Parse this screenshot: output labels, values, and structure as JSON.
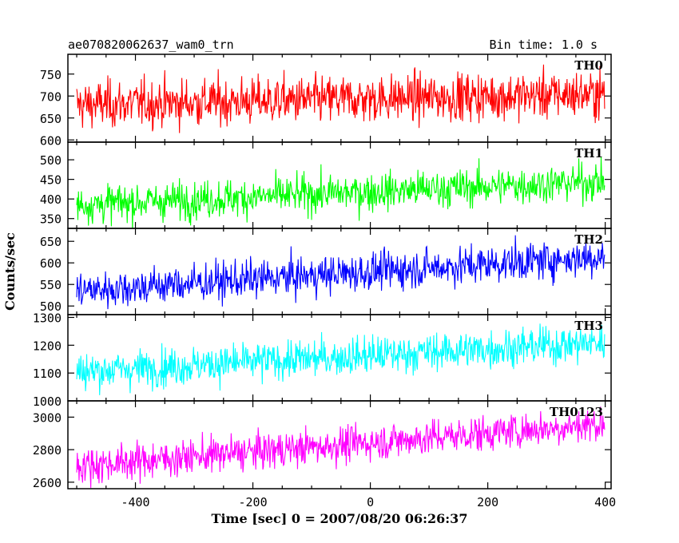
{
  "header": {
    "title": "ae070820062637_wam0_trn",
    "bin_time": "Bin time: 1.0 s"
  },
  "chart_data": {
    "type": "line",
    "xlabel": "Time [sec] 0 = 2007/08/20 06:26:37",
    "ylabel": "Counts/sec",
    "xlim": [
      -515,
      410
    ],
    "x_ticks": [
      -400,
      -200,
      0,
      200,
      400
    ],
    "x_range_data": [
      -500,
      399
    ],
    "bin_size": 1.0,
    "grid": false,
    "panels": [
      {
        "name": "TH0",
        "color": "#ff0000",
        "ylim": [
          595,
          795
        ],
        "y_ticks": [
          600,
          650,
          700,
          750
        ],
        "trend": {
          "start": 680,
          "end": 705
        },
        "noise_sigma": 27
      },
      {
        "name": "TH1",
        "color": "#00ff00",
        "ylim": [
          325,
          545
        ],
        "y_ticks": [
          350,
          400,
          450,
          500
        ],
        "trend": {
          "start": 385,
          "end": 445
        },
        "noise_sigma": 24
      },
      {
        "name": "TH2",
        "color": "#0000ff",
        "ylim": [
          480,
          680
        ],
        "y_ticks": [
          500,
          550,
          600,
          650
        ],
        "trend": {
          "start": 535,
          "end": 615
        },
        "noise_sigma": 22
      },
      {
        "name": "TH3",
        "color": "#00ffff",
        "ylim": [
          1000,
          1310
        ],
        "y_ticks": [
          1000,
          1100,
          1200,
          1300
        ],
        "trend": {
          "start": 1105,
          "end": 1210
        },
        "noise_sigma": 34
      },
      {
        "name": "TH0123",
        "color": "#ff00ff",
        "ylim": [
          2560,
          3100
        ],
        "y_ticks": [
          2600,
          2800,
          3000
        ],
        "trend": {
          "start": 2700,
          "end": 2960
        },
        "noise_sigma": 55
      }
    ]
  }
}
